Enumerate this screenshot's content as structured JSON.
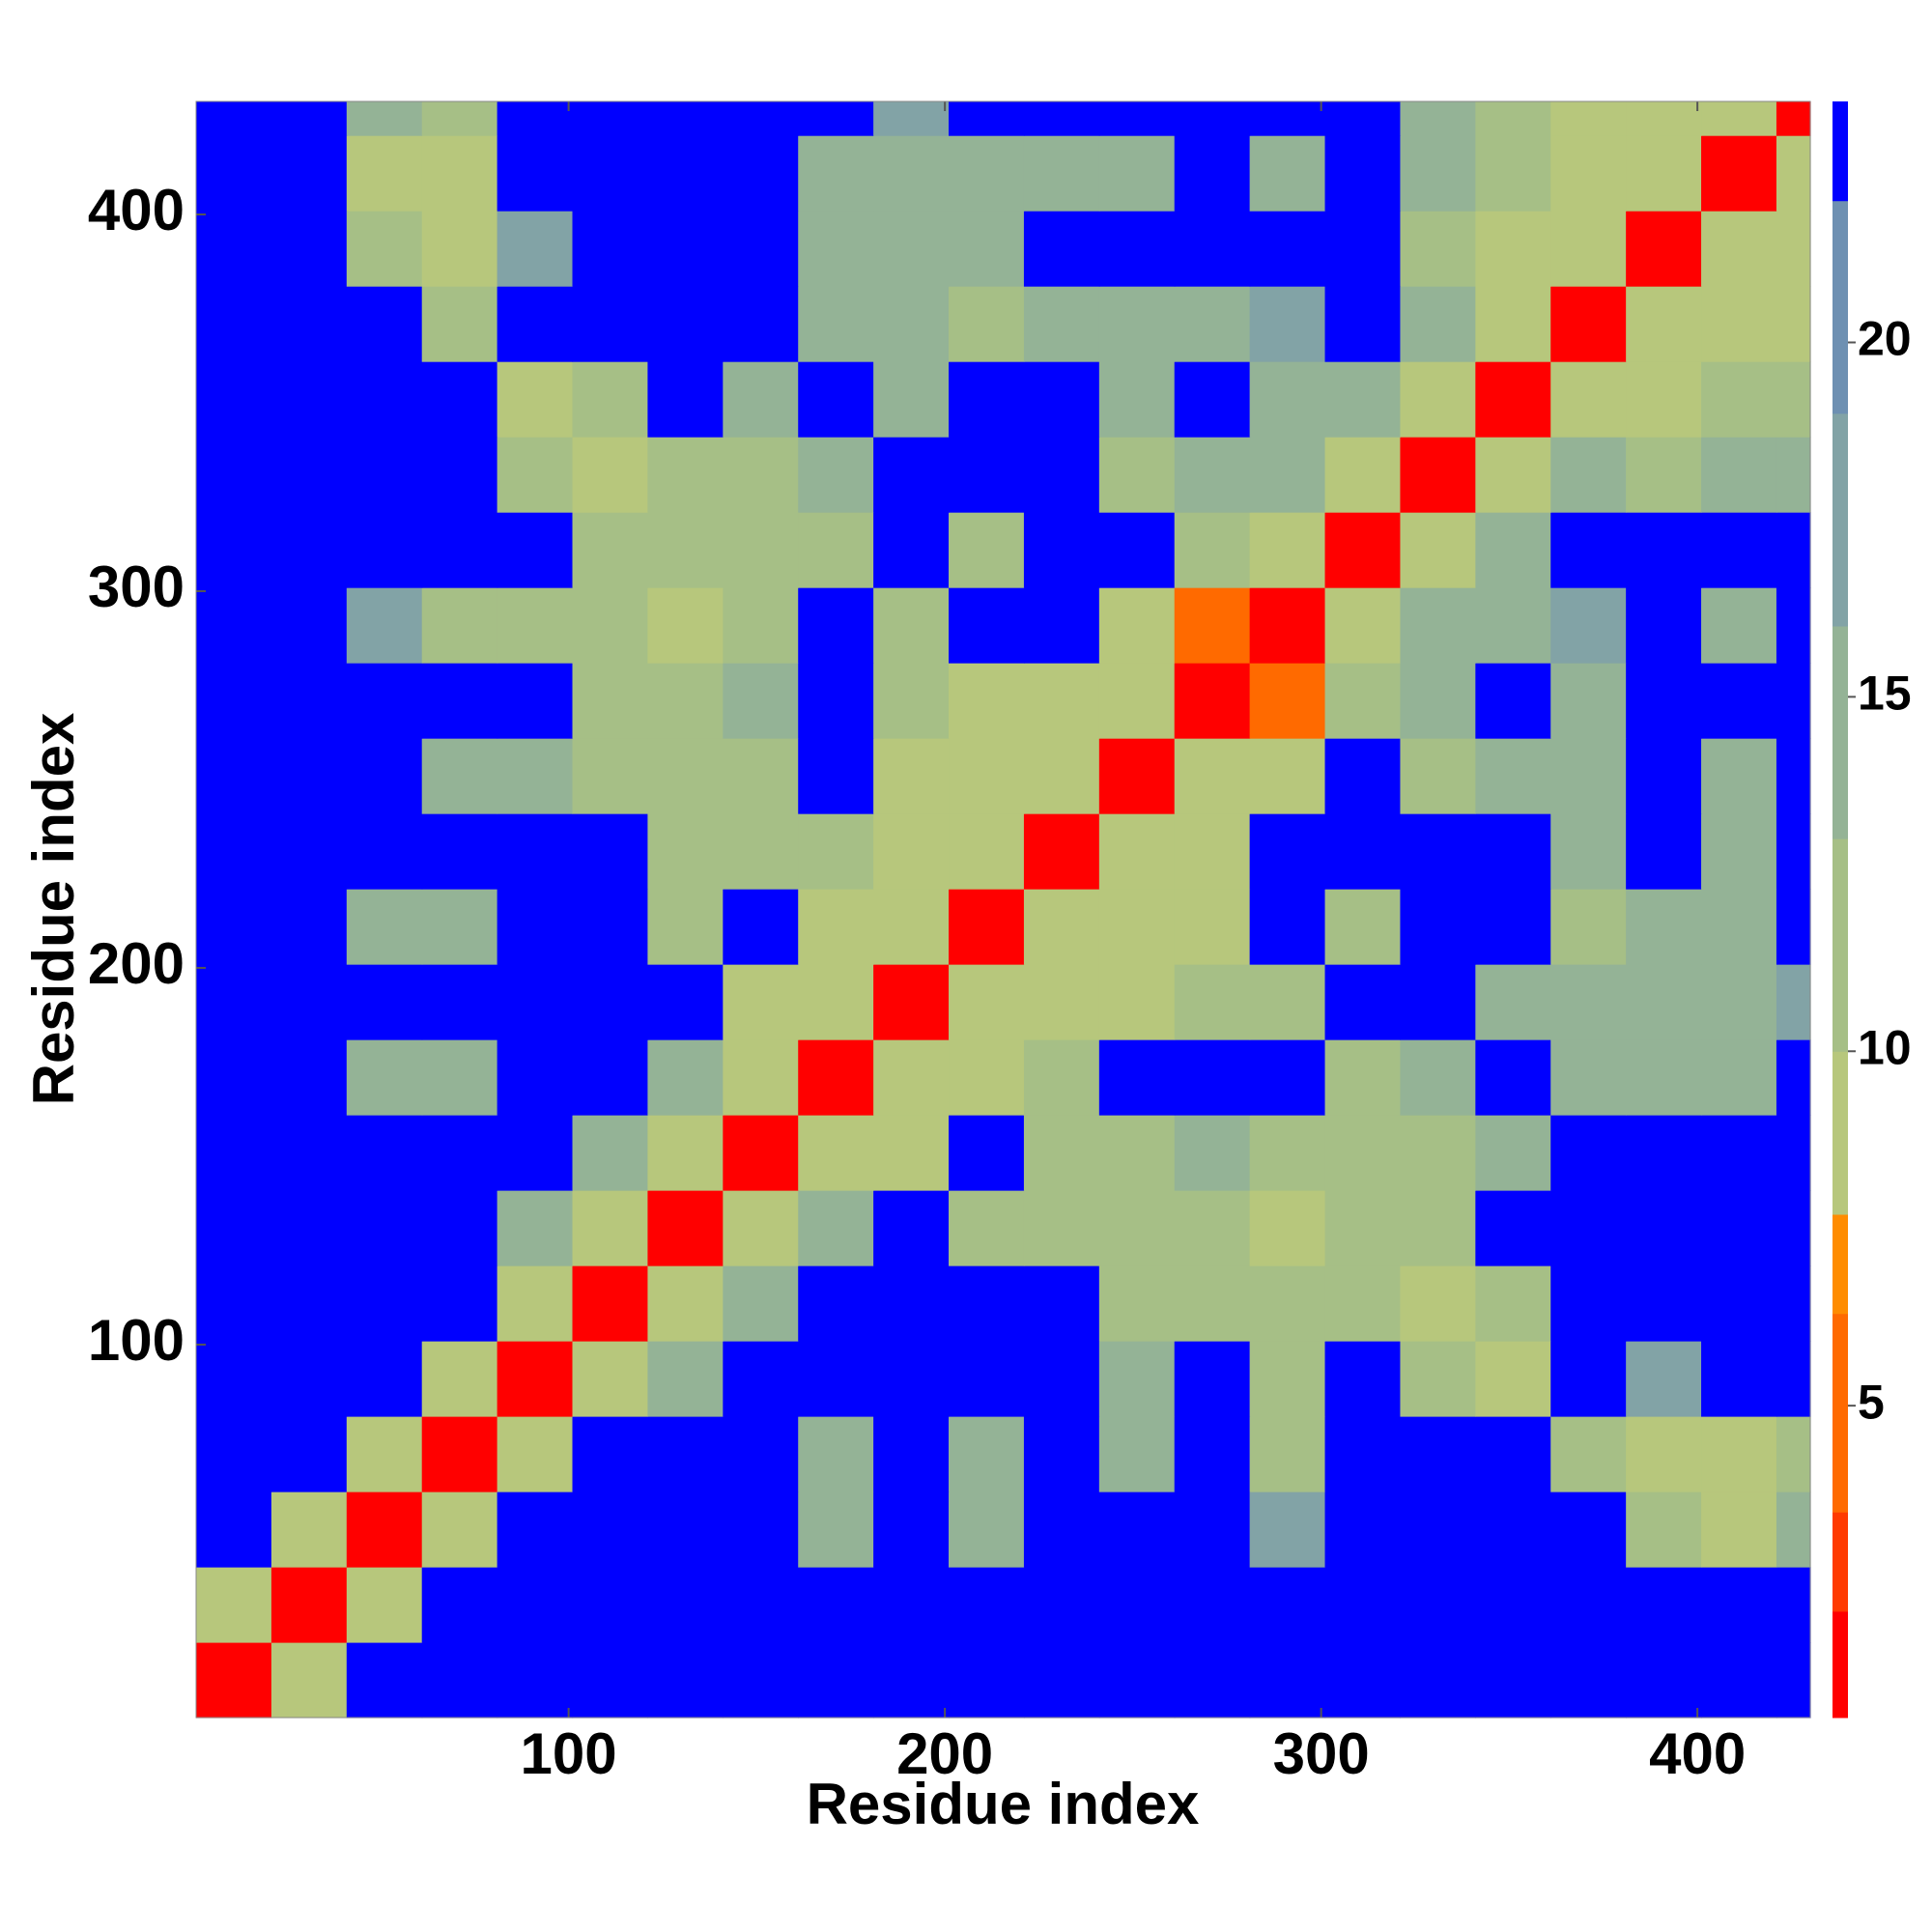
{
  "chart_data": {
    "type": "heatmap",
    "x_label": "Residue index",
    "y_label": "Residue index",
    "xlim": [
      1,
      430
    ],
    "ylim": [
      1,
      430
    ],
    "xticks": [
      100,
      200,
      300,
      400
    ],
    "yticks": [
      100,
      200,
      300,
      400
    ],
    "bins": [
      1,
      21,
      41,
      61,
      81,
      101,
      121,
      141,
      161,
      181,
      201,
      221,
      241,
      261,
      281,
      301,
      321,
      341,
      361,
      381,
      401,
      421,
      430
    ],
    "z": [
      [
        2,
        9,
        23,
        23,
        23,
        23,
        23,
        23,
        23,
        23,
        23,
        23,
        23,
        23,
        23,
        23,
        23,
        23,
        23,
        23,
        23,
        23
      ],
      [
        9,
        2,
        9,
        23,
        23,
        23,
        23,
        23,
        23,
        23,
        23,
        23,
        23,
        23,
        23,
        23,
        23,
        23,
        23,
        23,
        23,
        23
      ],
      [
        23,
        9,
        2,
        9,
        23,
        23,
        23,
        23,
        15,
        23,
        16,
        23,
        23,
        23,
        17,
        23,
        23,
        23,
        23,
        11,
        10,
        14
      ],
      [
        23,
        23,
        9,
        2,
        9,
        23,
        23,
        23,
        15,
        23,
        14,
        23,
        15,
        23,
        12,
        23,
        23,
        23,
        12,
        10,
        9,
        11
      ],
      [
        23,
        23,
        23,
        9,
        2,
        9,
        14,
        23,
        23,
        23,
        23,
        23,
        14,
        23,
        13,
        23,
        12,
        10,
        23,
        17,
        23,
        23
      ],
      [
        23,
        23,
        23,
        23,
        9,
        2,
        9,
        14,
        23,
        23,
        23,
        23,
        12,
        13,
        12,
        11,
        10,
        13,
        23,
        23,
        23,
        23
      ],
      [
        23,
        23,
        23,
        23,
        14,
        9,
        2,
        9,
        14,
        23,
        13,
        13,
        11,
        13,
        10,
        11,
        12,
        23,
        23,
        23,
        23,
        23
      ],
      [
        23,
        23,
        23,
        23,
        23,
        14,
        9,
        2,
        9,
        10,
        23,
        12,
        12,
        14,
        12,
        12,
        12,
        15,
        23,
        23,
        23,
        23
      ],
      [
        23,
        23,
        15,
        15,
        23,
        23,
        14,
        9,
        2,
        9,
        9,
        11,
        23,
        23,
        23,
        13,
        14,
        23,
        15,
        15,
        15,
        23
      ],
      [
        23,
        23,
        23,
        23,
        23,
        23,
        23,
        10,
        9,
        2,
        9,
        9,
        10,
        11,
        12,
        23,
        23,
        16,
        14,
        15,
        15,
        17
      ],
      [
        23,
        23,
        16,
        14,
        23,
        23,
        13,
        23,
        9,
        9,
        2,
        9,
        9,
        9,
        23,
        13,
        23,
        23,
        13,
        16,
        14,
        23
      ],
      [
        23,
        23,
        23,
        23,
        23,
        23,
        13,
        12,
        11,
        9,
        9,
        2,
        9,
        8,
        23,
        23,
        23,
        23,
        14,
        23,
        15,
        23
      ],
      [
        23,
        23,
        23,
        15,
        14,
        12,
        11,
        12,
        23,
        10,
        9,
        9,
        2,
        9,
        8,
        23,
        13,
        14,
        14,
        23,
        16,
        23
      ],
      [
        23,
        23,
        23,
        23,
        23,
        13,
        13,
        14,
        23,
        11,
        9,
        8,
        9,
        2,
        6,
        12,
        14,
        23,
        16,
        23,
        23,
        23
      ],
      [
        23,
        23,
        17,
        12,
        13,
        12,
        10,
        12,
        23,
        12,
        23,
        23,
        8,
        6,
        2,
        9,
        14,
        15,
        17,
        23,
        16,
        23
      ],
      [
        23,
        23,
        23,
        23,
        23,
        11,
        11,
        12,
        13,
        23,
        13,
        23,
        23,
        12,
        9,
        2,
        9,
        14,
        23,
        23,
        23,
        23
      ],
      [
        23,
        23,
        23,
        23,
        12,
        10,
        12,
        12,
        14,
        23,
        23,
        23,
        13,
        14,
        14,
        9,
        2,
        9,
        14,
        13,
        14,
        15
      ],
      [
        23,
        23,
        23,
        23,
        10,
        13,
        23,
        15,
        23,
        16,
        23,
        23,
        14,
        23,
        15,
        14,
        9,
        2,
        9,
        9,
        11,
        12
      ],
      [
        23,
        23,
        23,
        12,
        23,
        23,
        23,
        23,
        15,
        14,
        13,
        14,
        14,
        16,
        17,
        23,
        14,
        9,
        2,
        9,
        8,
        10
      ],
      [
        23,
        23,
        11,
        10,
        17,
        23,
        23,
        23,
        15,
        15,
        16,
        23,
        23,
        23,
        23,
        23,
        13,
        9,
        9,
        2,
        9,
        8
      ],
      [
        23,
        23,
        10,
        9,
        23,
        23,
        23,
        23,
        15,
        15,
        14,
        15,
        16,
        23,
        16,
        23,
        14,
        11,
        8,
        9,
        2,
        9
      ],
      [
        23,
        23,
        14,
        11,
        23,
        23,
        23,
        23,
        23,
        17,
        23,
        23,
        23,
        23,
        23,
        23,
        15,
        12,
        10,
        8,
        9,
        2
      ]
    ],
    "colorbar": {
      "zlim": [
        0.6,
        23.4
      ],
      "ticks": [
        5,
        10,
        15,
        20
      ],
      "levels": [
        0.6,
        2.1,
        3.5,
        6.3,
        7.7,
        10,
        13,
        16,
        19,
        22,
        23.4
      ],
      "colors": [
        "#ff0000",
        "#ff3a00",
        "#ff6a00",
        "#ff8c00",
        "#b7c77c",
        "#a6bf86",
        "#94b396",
        "#82a3a6",
        "#6e90b2",
        "#0000ff"
      ]
    }
  }
}
